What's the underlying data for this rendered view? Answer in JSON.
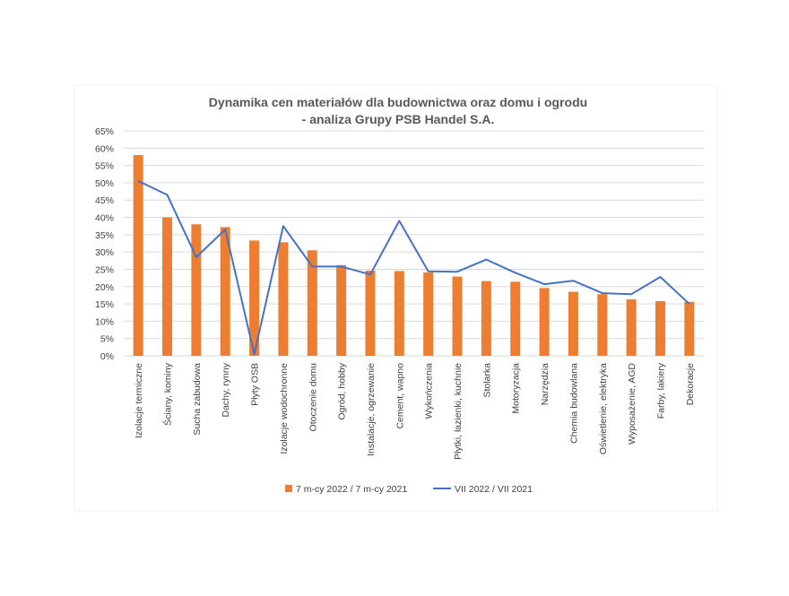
{
  "chart_data": {
    "type": "bar",
    "title": [
      "Dynamika cen materiałów dla budownictwa oraz domu i ogrodu",
      "- analiza Grupy PSB Handel S.A."
    ],
    "categories": [
      "Izolacje termiczne",
      "Ściany, kominy",
      "Sucha zabudowa",
      "Dachy, rynny",
      "Płyty OSB",
      "Izolacje wodochronne",
      "Otoczenie domu",
      "Ogród, hobby",
      "Instalacje, ogrzewanie",
      "Cement, wapno",
      "Wykończenia",
      "Płytki, łazienki, kuchnie",
      "Stolarka",
      "Motoryzacja",
      "Narzędzia",
      "Chemia budowlana",
      "Oświetlenie, elektryka",
      "Wyposażenie, AGD",
      "Farby, lakiery",
      "Dekoracje"
    ],
    "series": [
      {
        "name": "7 m-cy 2022 / 7 m-cy 2021",
        "type": "bar",
        "color": "#ed7d31",
        "values": [
          58,
          40,
          38,
          37.2,
          33.3,
          32.8,
          30.5,
          26.2,
          24.6,
          24.5,
          24.1,
          22.9,
          21.6,
          21.4,
          19.6,
          18.5,
          17.8,
          16.3,
          15.8,
          15.6
        ]
      },
      {
        "name": "VII 2022 / VII 2021",
        "type": "line",
        "color": "#4472c4",
        "values": [
          50.5,
          46.5,
          28.5,
          36.5,
          0.5,
          37.5,
          25.8,
          25.8,
          23.5,
          39,
          24.4,
          24.3,
          27.8,
          24,
          20.7,
          21.7,
          18.1,
          17.8,
          22.8,
          15
        ]
      }
    ],
    "y_ticks": [
      "0%",
      "5%",
      "10%",
      "15%",
      "20%",
      "25%",
      "30%",
      "35%",
      "40%",
      "45%",
      "50%",
      "55%",
      "60%",
      "65%"
    ],
    "ylim": [
      0,
      65
    ],
    "grid": true,
    "legend_position": "bottom"
  }
}
